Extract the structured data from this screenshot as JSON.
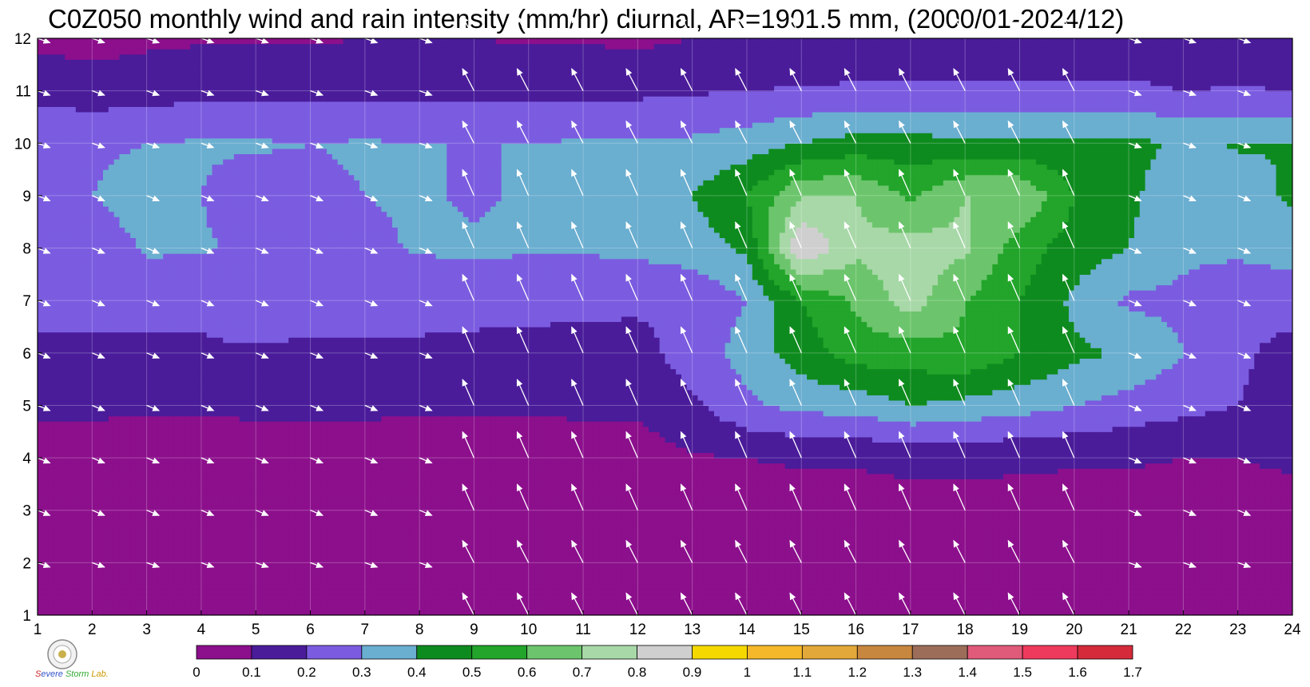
{
  "title": "C0Z050 monthly wind and rain intensity (mm/hr) diurnal, AR=1901.5 mm, (2000/01-2024/12)",
  "chart_data": {
    "type": "heatmap",
    "title": "C0Z050 monthly wind and rain intensity (mm/hr) diurnal, AR=1901.5 mm, (2000/01-2024/12)",
    "x_ticks": [
      "1",
      "2",
      "3",
      "4",
      "5",
      "6",
      "7",
      "8",
      "9",
      "10",
      "11",
      "12",
      "13",
      "14",
      "15",
      "16",
      "17",
      "18",
      "19",
      "20",
      "21",
      "22",
      "23",
      "24"
    ],
    "y_ticks": [
      "1",
      "2",
      "3",
      "4",
      "5",
      "6",
      "7",
      "8",
      "9",
      "10",
      "11",
      "12"
    ],
    "xlim": [
      1,
      24
    ],
    "ylim": [
      1,
      12
    ],
    "colorbar": {
      "levels": [
        "0",
        "0.1",
        "0.2",
        "0.3",
        "0.4",
        "0.5",
        "0.6",
        "0.7",
        "0.8",
        "0.9",
        "1",
        "1.1",
        "1.2",
        "1.3",
        "1.4",
        "1.5",
        "1.6",
        "1.7"
      ],
      "colors": [
        "#8c0f8c",
        "#4a1c9a",
        "#7b5ce0",
        "#6aaed0",
        "#0e8b1e",
        "#22a52a",
        "#6cc56c",
        "#a8d8a8",
        "#cfcfcf",
        "#f5d800",
        "#f5b82a",
        "#e3a83a",
        "#c8873e",
        "#9c6e5a",
        "#e05a7a",
        "#ee3a5c",
        "#d42a3a"
      ]
    },
    "rain_grid_rows_by_month": [
      [
        0.03,
        0.02,
        0.02,
        0.02,
        0.02,
        0.02,
        0.02,
        0.03,
        0.03,
        0.03,
        0.03,
        0.03,
        0.03,
        0.03,
        0.03,
        0.03,
        0.03,
        0.03,
        0.03,
        0.03,
        0.03,
        0.03,
        0.03,
        0.03
      ],
      [
        0.03,
        0.03,
        0.03,
        0.03,
        0.03,
        0.03,
        0.03,
        0.03,
        0.04,
        0.04,
        0.04,
        0.04,
        0.04,
        0.04,
        0.04,
        0.04,
        0.04,
        0.04,
        0.04,
        0.04,
        0.04,
        0.04,
        0.04,
        0.03
      ],
      [
        0.04,
        0.04,
        0.04,
        0.04,
        0.04,
        0.04,
        0.04,
        0.04,
        0.04,
        0.04,
        0.04,
        0.04,
        0.05,
        0.05,
        0.06,
        0.06,
        0.07,
        0.07,
        0.06,
        0.06,
        0.06,
        0.05,
        0.05,
        0.05
      ],
      [
        0.05,
        0.05,
        0.05,
        0.05,
        0.05,
        0.05,
        0.05,
        0.05,
        0.05,
        0.05,
        0.05,
        0.05,
        0.09,
        0.1,
        0.11,
        0.11,
        0.12,
        0.12,
        0.12,
        0.11,
        0.11,
        0.1,
        0.1,
        0.12
      ],
      [
        0.12,
        0.12,
        0.11,
        0.11,
        0.12,
        0.12,
        0.12,
        0.11,
        0.11,
        0.11,
        0.12,
        0.12,
        0.18,
        0.28,
        0.33,
        0.34,
        0.4,
        0.37,
        0.34,
        0.3,
        0.26,
        0.23,
        0.2,
        0.16
      ],
      [
        0.17,
        0.17,
        0.17,
        0.18,
        0.18,
        0.17,
        0.18,
        0.18,
        0.16,
        0.16,
        0.15,
        0.16,
        0.25,
        0.34,
        0.45,
        0.55,
        0.55,
        0.58,
        0.5,
        0.42,
        0.39,
        0.3,
        0.22,
        0.16
      ],
      [
        0.24,
        0.24,
        0.25,
        0.23,
        0.3,
        0.26,
        0.25,
        0.24,
        0.25,
        0.24,
        0.23,
        0.22,
        0.22,
        0.3,
        0.5,
        0.62,
        0.75,
        0.6,
        0.5,
        0.38,
        0.28,
        0.28,
        0.23,
        0.25
      ],
      [
        0.28,
        0.24,
        0.31,
        0.31,
        0.28,
        0.24,
        0.28,
        0.31,
        0.31,
        0.31,
        0.31,
        0.32,
        0.35,
        0.42,
        0.9,
        0.72,
        0.75,
        0.72,
        0.55,
        0.45,
        0.4,
        0.32,
        0.32,
        0.34
      ],
      [
        0.28,
        0.3,
        0.35,
        0.3,
        0.25,
        0.28,
        0.3,
        0.31,
        0.29,
        0.31,
        0.32,
        0.33,
        0.4,
        0.5,
        0.7,
        0.7,
        0.58,
        0.7,
        0.7,
        0.5,
        0.42,
        0.33,
        0.35,
        0.42
      ],
      [
        0.3,
        0.28,
        0.3,
        0.31,
        0.31,
        0.3,
        0.31,
        0.3,
        0.3,
        0.3,
        0.31,
        0.31,
        0.32,
        0.35,
        0.4,
        0.44,
        0.44,
        0.42,
        0.42,
        0.42,
        0.43,
        0.38,
        0.41,
        0.4
      ],
      [
        0.16,
        0.15,
        0.16,
        0.17,
        0.17,
        0.17,
        0.17,
        0.17,
        0.18,
        0.18,
        0.18,
        0.18,
        0.19,
        0.2,
        0.21,
        0.22,
        0.22,
        0.22,
        0.22,
        0.22,
        0.23,
        0.2,
        0.21,
        0.2
      ],
      [
        0.08,
        0.06,
        0.08,
        0.09,
        0.09,
        0.09,
        0.1,
        0.1,
        0.1,
        0.09,
        0.09,
        0.08,
        0.1,
        0.11,
        0.11,
        0.1,
        0.11,
        0.11,
        0.11,
        0.11,
        0.1,
        0.1,
        0.11,
        0.11
      ]
    ],
    "wind_grid_rows_by_month": [
      {
        "u": [
          0.2,
          0.5,
          0.5,
          0.5,
          0.5,
          0.5,
          0.5,
          0.5,
          -0.4,
          -0.5,
          -0.5,
          -0.5,
          -0.5,
          -0.5,
          -0.5,
          -0.5,
          -0.5,
          -0.5,
          -0.2,
          -0.2,
          0,
          0.1,
          0.3,
          0.1
        ],
        "v": [
          0.1,
          -0.2,
          -0.2,
          -0.2,
          -0.2,
          -0.2,
          -0.2,
          -0.2,
          1,
          1.3,
          1.3,
          1.3,
          1.3,
          1.3,
          1.3,
          1.3,
          1.3,
          1.3,
          0.7,
          0.5,
          0.5,
          0.4,
          0.4,
          0.1
        ]
      },
      {
        "u": [
          0.3,
          0.5,
          0.5,
          0.5,
          0.5,
          0.5,
          0.5,
          0.5,
          -0.3,
          -0.5,
          -0.5,
          -0.5,
          -0.5,
          -0.5,
          -0.5,
          -0.5,
          -0.5,
          -0.5,
          -0.3,
          -0.2,
          0,
          0.1,
          0.3,
          0.3
        ],
        "v": [
          0.1,
          -0.2,
          -0.2,
          -0.2,
          -0.2,
          -0.2,
          -0.2,
          -0.2,
          0.5,
          1.2,
          1.3,
          1.3,
          1.3,
          1.3,
          1.3,
          1.3,
          1.3,
          1.3,
          0.7,
          0.5,
          0.5,
          0.5,
          0.1,
          0.1
        ]
      }
    ],
    "xlabel": "",
    "ylabel": "",
    "grid": true,
    "legend": "bottom colorbar"
  }
}
